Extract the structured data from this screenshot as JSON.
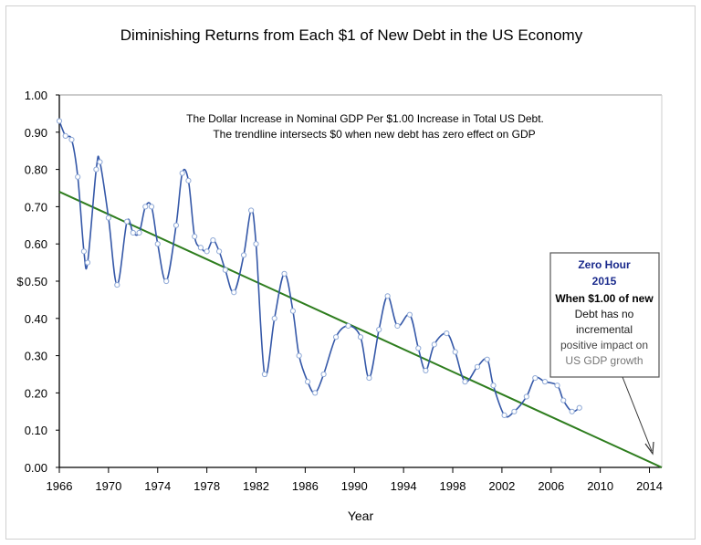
{
  "chart_data": {
    "type": "line",
    "title": "Diminishing Returns from Each $1 of New Debt in the US Economy",
    "subtitle_lines": [
      "The Dollar Increase in Nominal GDP Per $1.00 Increase in Total US Debt.",
      "The trendline intersects $0 when new debt has zero effect on GDP"
    ],
    "xlabel": "Year",
    "ylabel": "$",
    "xlim": [
      1966,
      2015
    ],
    "ylim": [
      0,
      1.0
    ],
    "x_ticks": [
      "1966",
      "1970",
      "1974",
      "1978",
      "1982",
      "1986",
      "1990",
      "1994",
      "1998",
      "2002",
      "2006",
      "2010",
      "2014"
    ],
    "y_ticks": [
      "0.00",
      "0.10",
      "0.20",
      "0.30",
      "0.40",
      "0.50",
      "0.60",
      "0.70",
      "0.80",
      "0.90",
      "1.00"
    ],
    "grid": false,
    "series": [
      {
        "x": [
          1966,
          1966.5,
          1967,
          1967.5,
          1968,
          1968.3,
          1969,
          1969.3,
          1970,
          1970.7,
          1971.5,
          1972,
          1972.5,
          1973,
          1973.5,
          1974,
          1974.7,
          1975.5,
          1976,
          1976.5,
          1977,
          1977.5,
          1978,
          1978.5,
          1979,
          1979.5,
          1980.2,
          1981,
          1981.6,
          1982,
          1982.7,
          1983.5,
          1984.3,
          1985,
          1985.5,
          1986.2,
          1986.8,
          1987.5,
          1988.5,
          1989.5,
          1990.5,
          1991.2,
          1992,
          1992.7,
          1993.5,
          1994.5,
          1995.2,
          1995.8,
          1996.5,
          1997.5,
          1998.2,
          1999,
          2000,
          2000.8,
          2001.3,
          2002.2,
          2003,
          2004,
          2004.7,
          2005.5,
          2006.5,
          2007,
          2007.7,
          2008.3
        ],
        "y": [
          0.93,
          0.89,
          0.88,
          0.78,
          0.58,
          0.55,
          0.8,
          0.82,
          0.67,
          0.49,
          0.66,
          0.63,
          0.63,
          0.7,
          0.7,
          0.6,
          0.5,
          0.65,
          0.79,
          0.77,
          0.62,
          0.59,
          0.58,
          0.61,
          0.58,
          0.53,
          0.47,
          0.57,
          0.69,
          0.6,
          0.25,
          0.4,
          0.52,
          0.42,
          0.3,
          0.23,
          0.2,
          0.25,
          0.35,
          0.38,
          0.35,
          0.24,
          0.37,
          0.46,
          0.38,
          0.41,
          0.32,
          0.26,
          0.33,
          0.36,
          0.31,
          0.23,
          0.27,
          0.29,
          0.22,
          0.14,
          0.15,
          0.19,
          0.24,
          0.23,
          0.22,
          0.18,
          0.15,
          0.16
        ]
      }
    ],
    "trendline": {
      "x": [
        1966,
        2015
      ],
      "y": [
        0.74,
        0.0
      ]
    },
    "annotation": {
      "title_lines": [
        "Zero Hour",
        "2015"
      ],
      "body_lines": [
        "When $1.00 of new",
        "Debt has no",
        "incremental",
        "positive impact on",
        "US GDP growth"
      ],
      "arrow_to": {
        "x": 2015,
        "y": 0
      }
    },
    "colors": {
      "series": "#3558a8",
      "marker_stroke": "#8fa9d6",
      "trendline": "#2e7d1e",
      "annotation_title": "#1a2a8c"
    }
  }
}
